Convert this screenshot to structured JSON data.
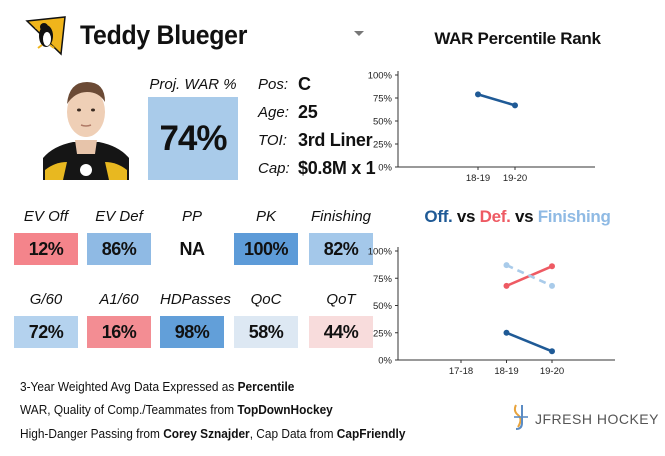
{
  "player": {
    "name": "Teddy Blueger",
    "team_logo_icon": "penguin-logo-icon",
    "proj_war_label": "Proj. WAR %",
    "proj_war_value": "74%"
  },
  "info": {
    "pos_label": "Pos:",
    "pos_value": "C",
    "age_label": "Age:",
    "age_value": "25",
    "toi_label": "TOI:",
    "toi_value": "3rd Liner",
    "cap_label": "Cap:",
    "cap_value": "$0.8M x 1"
  },
  "stats": [
    {
      "label": "EV Off",
      "value": "12%",
      "color": "#f4848b"
    },
    {
      "label": "EV Def",
      "value": "86%",
      "color": "#8fbae4"
    },
    {
      "label": "PP",
      "value": "NA",
      "color": "#ffffff"
    },
    {
      "label": "PK",
      "value": "100%",
      "color": "#5d9bd8"
    },
    {
      "label": "Finishing",
      "value": "82%",
      "color": "#a4c8ea"
    },
    {
      "label": "G/60",
      "value": "72%",
      "color": "#b4d2ee"
    },
    {
      "label": "A1/60",
      "value": "16%",
      "color": "#f38d93"
    },
    {
      "label": "HDPasses",
      "value": "98%",
      "color": "#629fd9"
    },
    {
      "label": "QoC",
      "value": "58%",
      "color": "#dde8f3"
    },
    {
      "label": "QoT",
      "value": "44%",
      "color": "#f8dcdc"
    }
  ],
  "footer": {
    "line1_text": "3-Year Weighted Avg Data Expressed as ",
    "line1_bold": "Percentile",
    "line2_text": "WAR, Quality of Comp./Teammates from ",
    "line2_bold": "TopDownHockey",
    "line3_text1": "High-Danger Passing from ",
    "line3_bold1": "Corey Sznajder",
    "line3_text2": ", Cap Data from ",
    "line3_bold2": "CapFriendly"
  },
  "brand": {
    "text": "JFRESH HOCKEY",
    "icon": "jfresh-logo-icon"
  },
  "colors": {
    "off": "#1f5a96",
    "def": "#ee5a63",
    "fin": "#8fbae4"
  },
  "chart_data": [
    {
      "type": "line",
      "title": "WAR Percentile Rank",
      "x": [
        "18-19",
        "19-20"
      ],
      "ylim": [
        0,
        100
      ],
      "yticks": [
        "0%",
        "25%",
        "50%",
        "75%",
        "100%"
      ],
      "grid": false,
      "series": [
        {
          "values": [
            79,
            67
          ],
          "color": "#1f5a96",
          "dash": false
        }
      ]
    },
    {
      "type": "line",
      "title_parts": [
        "Off.",
        " vs ",
        "Def.",
        " vs ",
        "Finishing"
      ],
      "x": [
        "17-18",
        "18-19",
        "19-20"
      ],
      "ylim": [
        0,
        100
      ],
      "yticks": [
        "0%",
        "25%",
        "50%",
        "75%",
        "100%"
      ],
      "grid": false,
      "series": [
        {
          "name": "Off.",
          "values": [
            null,
            25,
            8
          ],
          "color": "#1f5a96",
          "dash": false
        },
        {
          "name": "Def.",
          "values": [
            null,
            68,
            86
          ],
          "color": "#ee5a63",
          "dash": false
        },
        {
          "name": "Finishing",
          "values": [
            null,
            87,
            68
          ],
          "color": "#a9cbea",
          "dash": true
        }
      ]
    }
  ]
}
